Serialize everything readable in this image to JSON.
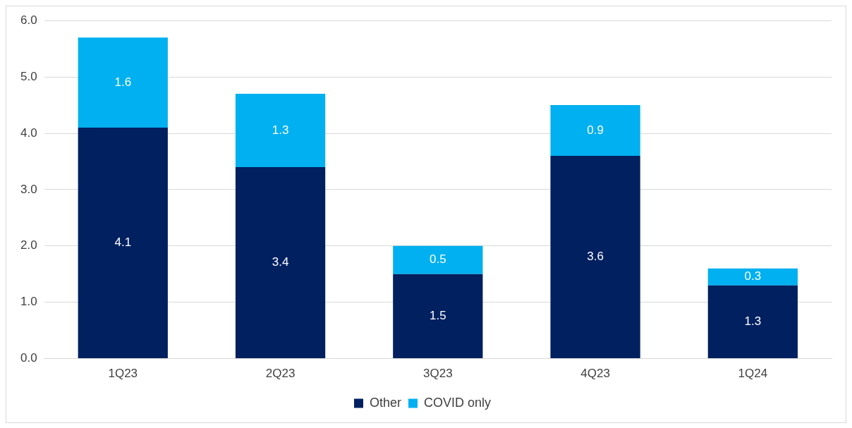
{
  "chart_data": {
    "type": "bar",
    "stacked": true,
    "categories": [
      "1Q23",
      "2Q23",
      "3Q23",
      "4Q23",
      "1Q24"
    ],
    "series": [
      {
        "name": "Other",
        "color": "#002060",
        "values": [
          4.1,
          3.4,
          1.5,
          3.6,
          1.3
        ]
      },
      {
        "name": "COVID only",
        "color": "#00b0f0",
        "values": [
          1.6,
          1.3,
          0.5,
          0.9,
          0.3
        ]
      }
    ],
    "ylim": [
      0,
      6
    ],
    "yticks": [
      {
        "value": 0,
        "label": "0.0"
      },
      {
        "value": 1,
        "label": "1.0"
      },
      {
        "value": 2,
        "label": "2.0"
      },
      {
        "value": 3,
        "label": "3.0"
      },
      {
        "value": 4,
        "label": "4.0"
      },
      {
        "value": 5,
        "label": "5.0"
      },
      {
        "value": 6,
        "label": "6.0"
      }
    ],
    "grid": "y",
    "legend": "bottom",
    "data_labels": true
  }
}
